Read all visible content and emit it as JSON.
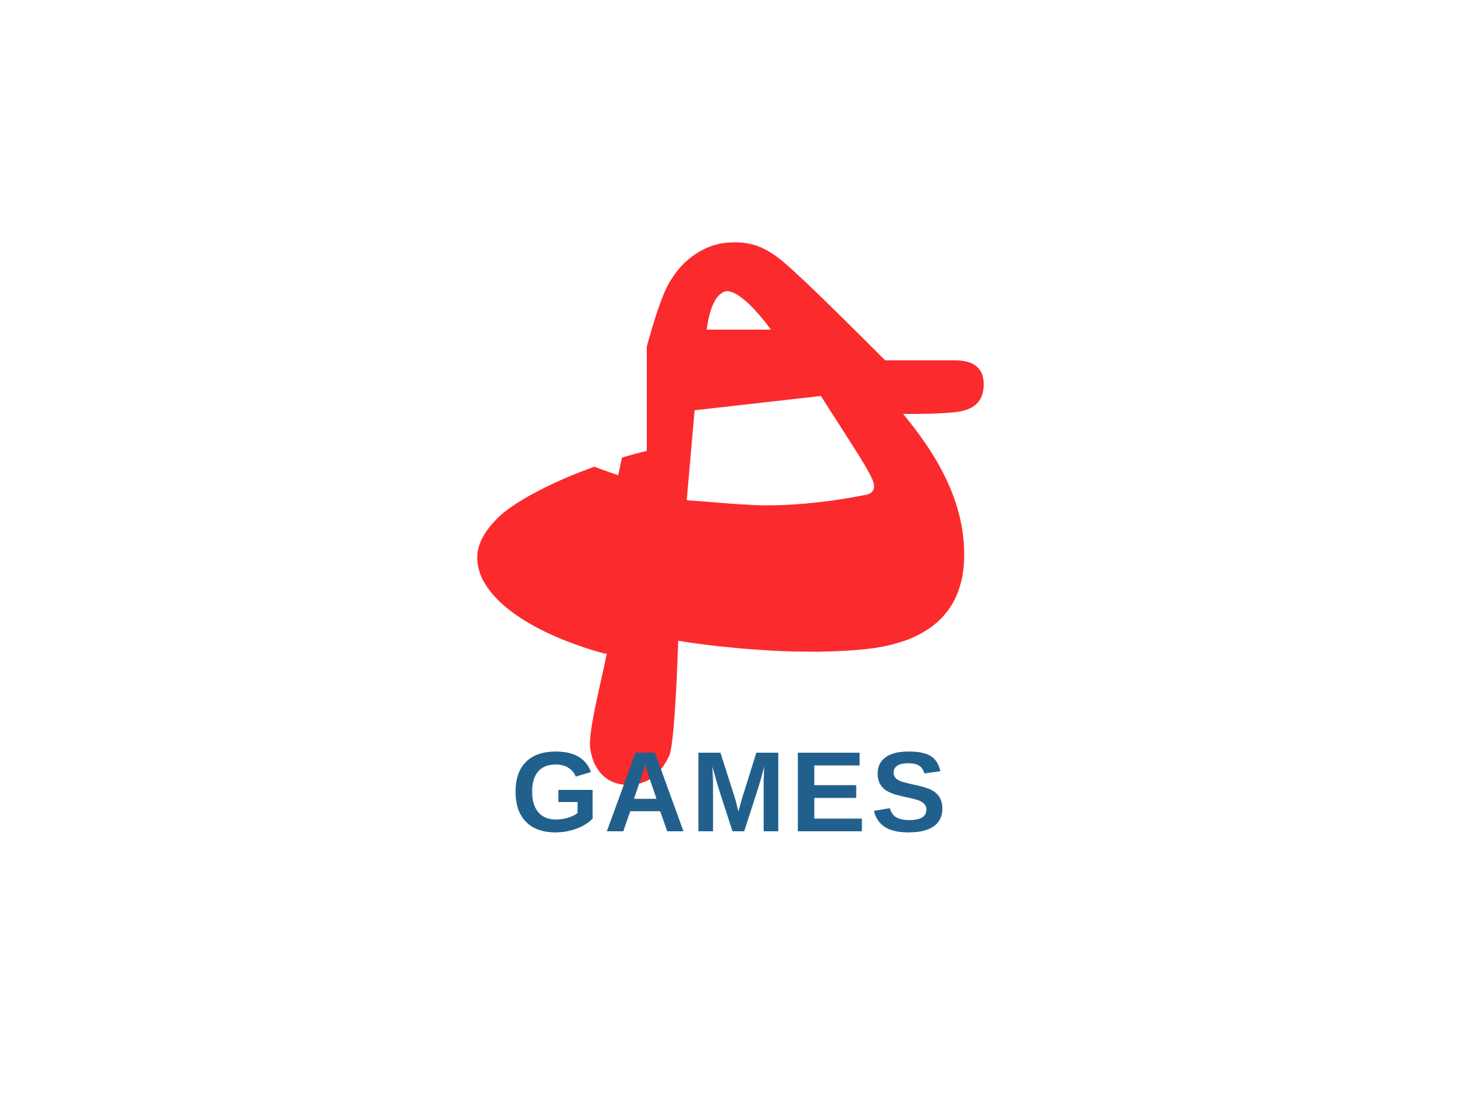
{
  "logo": {
    "icon": "red-a-swirl-logo-icon",
    "wordmark": "GAMES",
    "colors": {
      "mark": "#fa2a2d",
      "wordmark": "#21608c",
      "background": "#ffffff"
    }
  }
}
